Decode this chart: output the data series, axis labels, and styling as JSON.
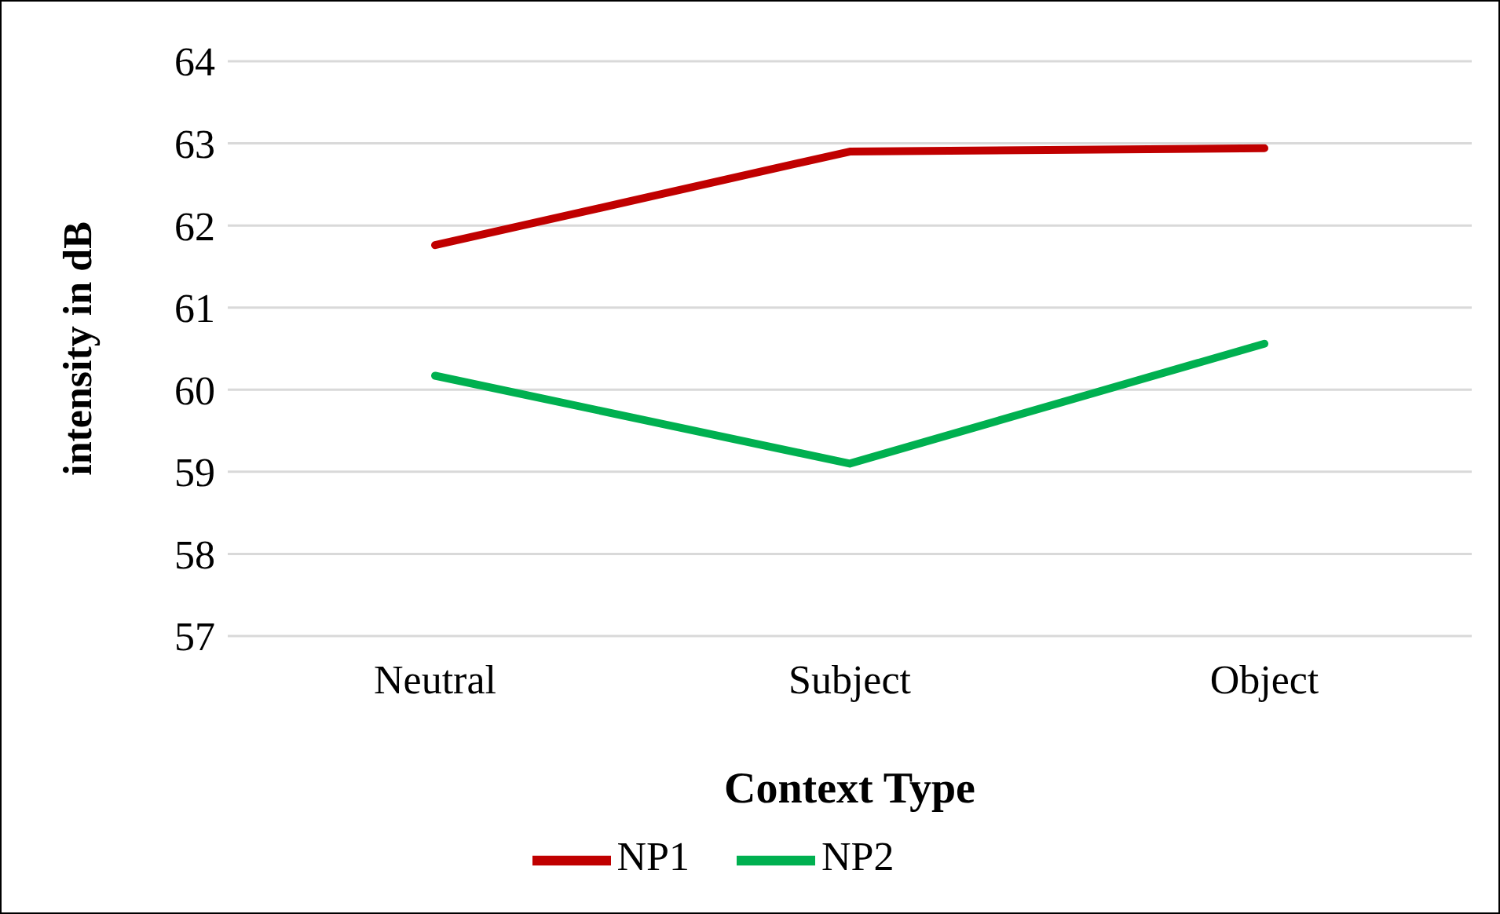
{
  "chart_data": {
    "type": "line",
    "xlabel": "Context Type",
    "ylabel": "intensity in dB",
    "categories": [
      "Neutral",
      "Subject",
      "Object"
    ],
    "series": [
      {
        "name": "NP1",
        "color": "#c00000",
        "values": [
          61.76,
          62.9,
          62.94
        ]
      },
      {
        "name": "NP2",
        "color": "#00b050",
        "values": [
          60.17,
          59.1,
          60.56
        ]
      }
    ],
    "ylim": [
      57,
      64
    ],
    "yticks": [
      57,
      58,
      59,
      60,
      61,
      62,
      63,
      64
    ],
    "grid": "y",
    "legend": "bottom",
    "marker": "none",
    "line_style": "solid"
  }
}
